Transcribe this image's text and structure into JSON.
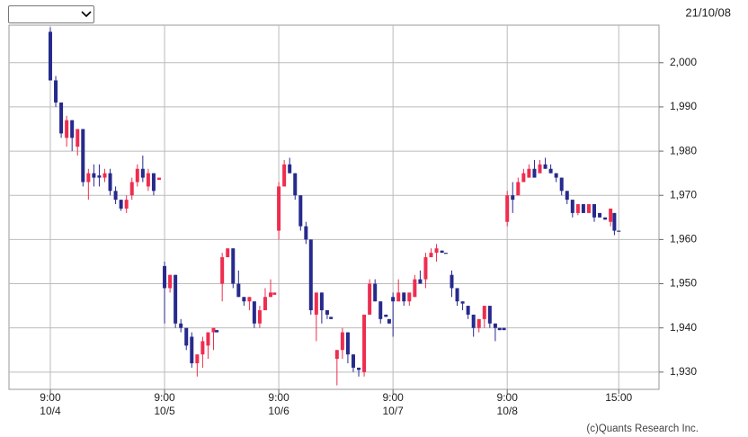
{
  "header": {
    "date": "21/10/08"
  },
  "footer": {
    "credit": "(c)Quants Research Inc."
  },
  "chart_data": {
    "type": "candlestick",
    "colors": {
      "up": "#ee2d4f",
      "down": "#262a8c"
    },
    "grid": true,
    "xlim": [
      -7.6,
      111.9
    ],
    "ylim": [
      1926.1,
      2008.5
    ],
    "xticks": [
      {
        "value": 0,
        "label": "9:00",
        "date": "10/4"
      },
      {
        "value": 21,
        "label": "9:00",
        "date": "10/5"
      },
      {
        "value": 42,
        "label": "9:00",
        "date": "10/6"
      },
      {
        "value": 63,
        "label": "9:00",
        "date": "10/7"
      },
      {
        "value": 84,
        "label": "9:00",
        "date": "10/8"
      },
      {
        "value": 104.5,
        "label": "15:00"
      }
    ],
    "yticks": [
      {
        "value": 1930,
        "label": "1,930"
      },
      {
        "value": 1940,
        "label": "1,940"
      },
      {
        "value": 1950,
        "label": "1,950"
      },
      {
        "value": 1960,
        "label": "1,960"
      },
      {
        "value": 1970,
        "label": "1,970"
      },
      {
        "value": 1980,
        "label": "1,980"
      },
      {
        "value": 1990,
        "label": "1,990"
      },
      {
        "value": 2000,
        "label": "2,000"
      }
    ],
    "x": [
      0,
      1,
      2,
      3,
      4,
      5,
      6,
      7,
      8,
      9,
      10,
      11,
      12,
      13,
      14,
      15,
      16,
      17,
      18,
      19,
      20,
      21,
      22,
      23,
      24,
      25,
      26,
      27,
      28,
      29,
      30,
      30.6,
      31.6,
      32.6,
      33.6,
      34.6,
      35.6,
      36.6,
      37.5,
      38.5,
      39.5,
      40.5,
      41.2,
      42,
      43,
      44,
      45,
      46,
      47,
      47.9,
      48.9,
      49.9,
      50.9,
      51.6,
      52.7,
      53.7,
      54.7,
      55.7,
      56.7,
      57.7,
      58.7,
      59.7,
      60.7,
      61.7,
      62.3,
      63,
      64,
      65,
      66,
      67,
      68,
      69,
      70,
      71,
      72,
      72.7,
      73.8,
      74.8,
      75.8,
      76.8,
      77.8,
      78.8,
      79.8,
      80.8,
      81.8,
      82.6,
      83.4,
      84,
      85,
      86,
      87,
      88,
      89,
      90,
      91,
      92,
      93,
      94,
      95,
      96,
      97,
      98,
      99,
      100,
      101,
      102,
      103,
      103.7,
      104.5
    ],
    "open": [
      2007,
      1996,
      1991,
      1983,
      1987,
      1981,
      1985,
      1973,
      1975,
      1974.5,
      1974,
      1975,
      1971,
      1969,
      1967,
      1970,
      1973,
      1976,
      1972,
      1975,
      1973.5,
      1954,
      1949,
      1952,
      1941,
      1940,
      1938,
      1932,
      1934,
      1936,
      1939,
      1939.5,
      1950,
      1956,
      1958,
      1950,
      1947,
      1946,
      1946,
      1941,
      1944,
      1947,
      1947.5,
      1962,
      1972,
      1977,
      1975,
      1970,
      1963,
      1960,
      1943,
      1948,
      1944,
      1942.5,
      1933,
      1935,
      1939,
      1934,
      1931,
      1930,
      1943,
      1950,
      1946,
      1943,
      1942,
      1947,
      1946,
      1948,
      1946,
      1947,
      1951,
      1951,
      1956,
      1957,
      1957.5,
      1957,
      1952,
      1949,
      1946,
      1945,
      1943,
      1940,
      1942,
      1945,
      1941,
      1940,
      1940,
      1964,
      1970,
      1970,
      1973,
      1974,
      1976,
      1975,
      1977,
      1976,
      1975,
      1974,
      1971,
      1969,
      1966,
      1968,
      1966,
      1968,
      1966,
      1965,
      1964,
      1966,
      1962
    ],
    "high": [
      2008,
      1997,
      1991,
      1988,
      1987,
      1985,
      1985,
      1976,
      1977,
      1977,
      1976,
      1976,
      1972,
      1969,
      1970,
      1974,
      1977,
      1979,
      1976,
      1975,
      1974,
      1955,
      1952,
      1952,
      1942,
      1940,
      1939,
      1934,
      1938,
      1939,
      1940,
      1939.5,
      1957,
      1958,
      1958,
      1953,
      1947,
      1947,
      1946,
      1945,
      1949,
      1951,
      1948,
      1973,
      1978,
      1978.5,
      1975,
      1970,
      1964,
      1960,
      1948,
      1948,
      1944,
      1942.5,
      1935,
      1940,
      1939,
      1934,
      1931,
      1943,
      1951,
      1951,
      1946,
      1943,
      1942,
      1948,
      1951,
      1948,
      1948,
      1952,
      1953,
      1957,
      1958,
      1959,
      1957.5,
      1957,
      1953,
      1949,
      1946,
      1945,
      1943,
      1942,
      1945,
      1945,
      1941,
      1940,
      1940,
      1971,
      1973,
      1974,
      1976,
      1977,
      1978,
      1978,
      1978.5,
      1977,
      1975,
      1974,
      1971,
      1969,
      1968,
      1968,
      1968,
      1968,
      1966,
      1965,
      1967,
      1966,
      1962
    ],
    "low": [
      1996,
      1990,
      1983,
      1981,
      1980,
      1979,
      1972,
      1969,
      1972,
      1972,
      1973,
      1970,
      1968,
      1966.5,
      1966,
      1969,
      1972,
      1973,
      1971,
      1970,
      1973.5,
      1941,
      1948,
      1940,
      1939,
      1935,
      1931,
      1929,
      1931,
      1933,
      1935,
      1939,
      1946,
      1956,
      1949,
      1947,
      1945,
      1944,
      1940,
      1940,
      1944,
      1947,
      1947.5,
      1960,
      1972,
      1975,
      1969,
      1962,
      1959,
      1943,
      1937,
      1941,
      1942,
      1942,
      1927,
      1933,
      1932,
      1930,
      1929,
      1929,
      1943,
      1946,
      1941,
      1942.5,
      1941,
      1938,
      1946,
      1945,
      1945,
      1947,
      1950,
      1949,
      1956,
      1955,
      1957,
      1957,
      1947,
      1945,
      1944,
      1942,
      1938,
      1939,
      1940,
      1940,
      1937,
      1939.5,
      1939.5,
      1963,
      1966,
      1970,
      1973,
      1974,
      1974,
      1975,
      1976,
      1975,
      1973,
      1970,
      1968,
      1965,
      1965.5,
      1966,
      1966,
      1964,
      1965,
      1964.5,
      1963,
      1961,
      1961.8
    ],
    "close": [
      1996,
      1991,
      1984,
      1987,
      1983,
      1985,
      1973,
      1975,
      1974,
      1974,
      1975,
      1971,
      1969,
      1967,
      1969,
      1973,
      1976,
      1974,
      1975,
      1971,
      1974,
      1949,
      1952,
      1941,
      1940,
      1936,
      1932,
      1934,
      1937,
      1939,
      1940,
      1939,
      1956,
      1958,
      1950,
      1947,
      1946,
      1947,
      1941,
      1944,
      1947,
      1948,
      1948,
      1972,
      1977,
      1975,
      1970,
      1963,
      1960,
      1944,
      1948,
      1944,
      1943,
      1942,
      1935,
      1939,
      1934,
      1931,
      1930.5,
      1943,
      1950,
      1946,
      1942,
      1942.5,
      1941,
      1946,
      1948,
      1946,
      1948,
      1951,
      1950,
      1956,
      1957,
      1958,
      1957,
      1957,
      1949,
      1946,
      1945.5,
      1943,
      1940,
      1942,
      1945,
      1941,
      1940,
      1939.5,
      1939.5,
      1970,
      1969,
      1973,
      1975,
      1976,
      1974,
      1977,
      1976,
      1975,
      1974,
      1971,
      1969,
      1966,
      1968,
      1966,
      1968,
      1965,
      1965,
      1964.5,
      1967,
      1962,
      1961.8
    ]
  }
}
